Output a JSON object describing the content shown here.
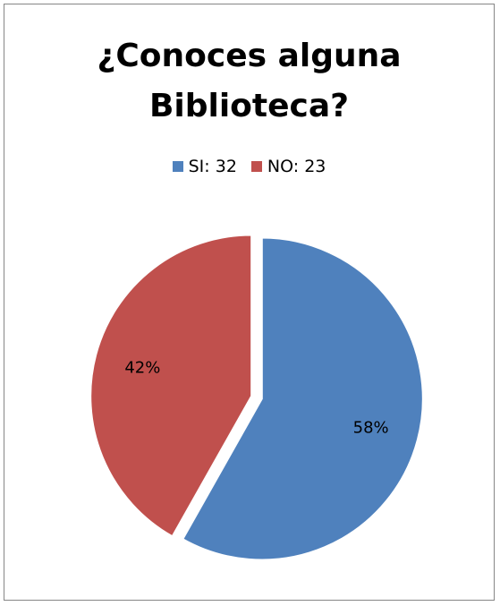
{
  "chart_data": {
    "type": "pie",
    "title": "¿Conoces alguna\nBiblioteca?",
    "legend_position": "top",
    "categories": [
      "SI",
      "NO"
    ],
    "values": [
      32,
      23
    ],
    "legend_labels": [
      "SI: 32",
      "NO:  23"
    ],
    "data_labels": [
      "58%",
      "42%"
    ],
    "colors": [
      "#4F81BD",
      "#C0504D"
    ],
    "exploded": true
  }
}
